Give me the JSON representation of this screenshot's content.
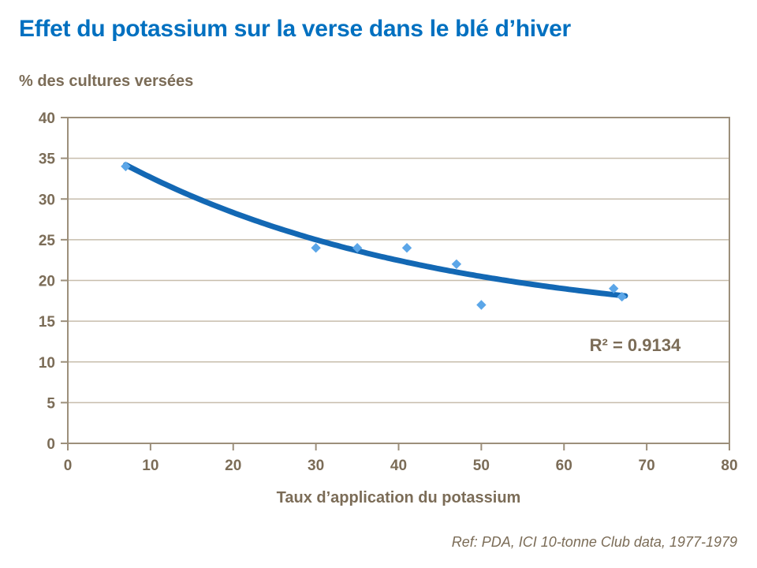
{
  "page": {
    "reference": "Ref: PDA, ICI 10-tonne Club data, 1977-1979"
  },
  "colors": {
    "background": "#FFFFFF",
    "title_blue": "#0070C0",
    "text_brown": "#7B6C57",
    "axis_line": "#9C8F7B",
    "gridline": "#C7BDAC",
    "trend_blue": "#1368B4",
    "marker_blue": "#5BA6E8"
  },
  "chart_data": {
    "type": "scatter",
    "title": "Effet du potassium sur la verse dans le blé d’hiver",
    "xlabel": "Taux d’application du potassium",
    "ylabel": "% des cultures versées",
    "xlim": [
      0,
      80
    ],
    "ylim": [
      0,
      40
    ],
    "xtick_step": 10,
    "ytick_step": 5,
    "grid": "horizontal-only",
    "legend": "none",
    "points": [
      {
        "x": 7,
        "y": 34
      },
      {
        "x": 30,
        "y": 24
      },
      {
        "x": 35,
        "y": 24
      },
      {
        "x": 41,
        "y": 24
      },
      {
        "x": 47,
        "y": 22
      },
      {
        "x": 50,
        "y": 17
      },
      {
        "x": 66,
        "y": 19
      },
      {
        "x": 67,
        "y": 18
      }
    ],
    "trendline": {
      "type": "exponential-fit",
      "x_start": 7,
      "x_end": 67.4,
      "x0": 7,
      "c": 14,
      "A": 20.2,
      "k": 0.0264
    },
    "annotation": {
      "text": "R² = 0.9134",
      "x": 68.6,
      "y": 12.1
    }
  }
}
